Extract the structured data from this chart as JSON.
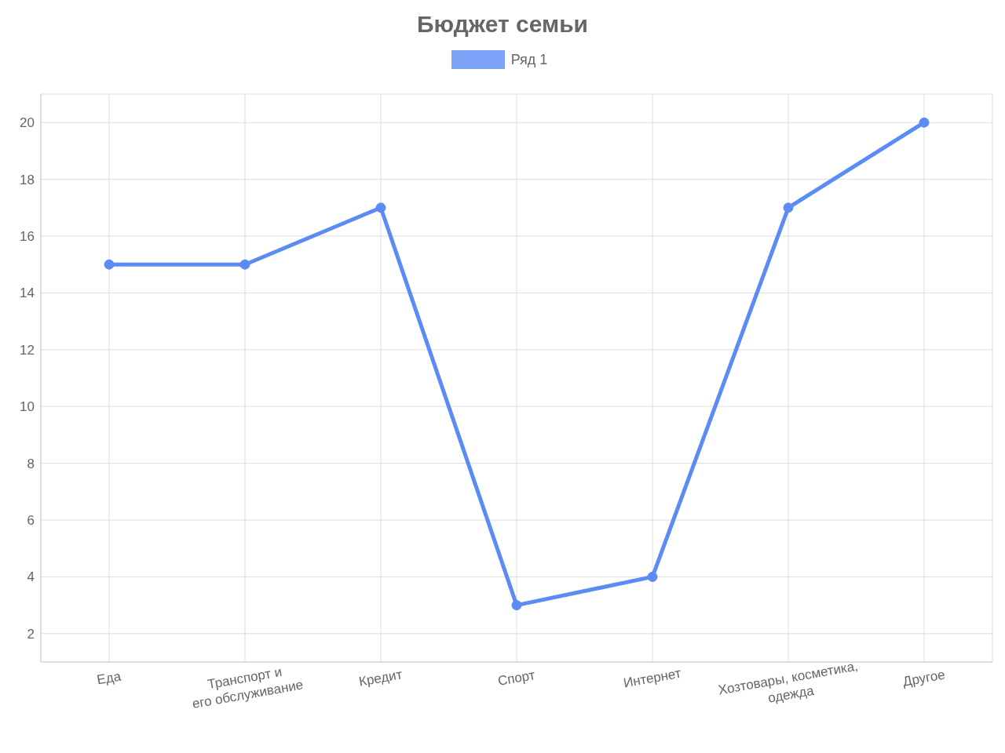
{
  "chart_data": {
    "type": "line",
    "title": "Бюджет семьи",
    "categories": [
      "Еда",
      "Транспорт и его обслуживание",
      "Кредит",
      "Спорт",
      "Интернет",
      "Хозтовары, косметика, одежда",
      "Другое"
    ],
    "series": [
      {
        "name": "Ряд 1",
        "color": "#5b8cf5",
        "values": [
          15,
          15,
          17,
          3,
          4,
          17,
          20
        ]
      }
    ],
    "ylim": [
      1,
      21
    ],
    "yticks": [
      2,
      4,
      6,
      8,
      10,
      12,
      14,
      16,
      18,
      20
    ],
    "grid": true,
    "legend": "top",
    "marker": "circle",
    "line_style": "solid"
  }
}
